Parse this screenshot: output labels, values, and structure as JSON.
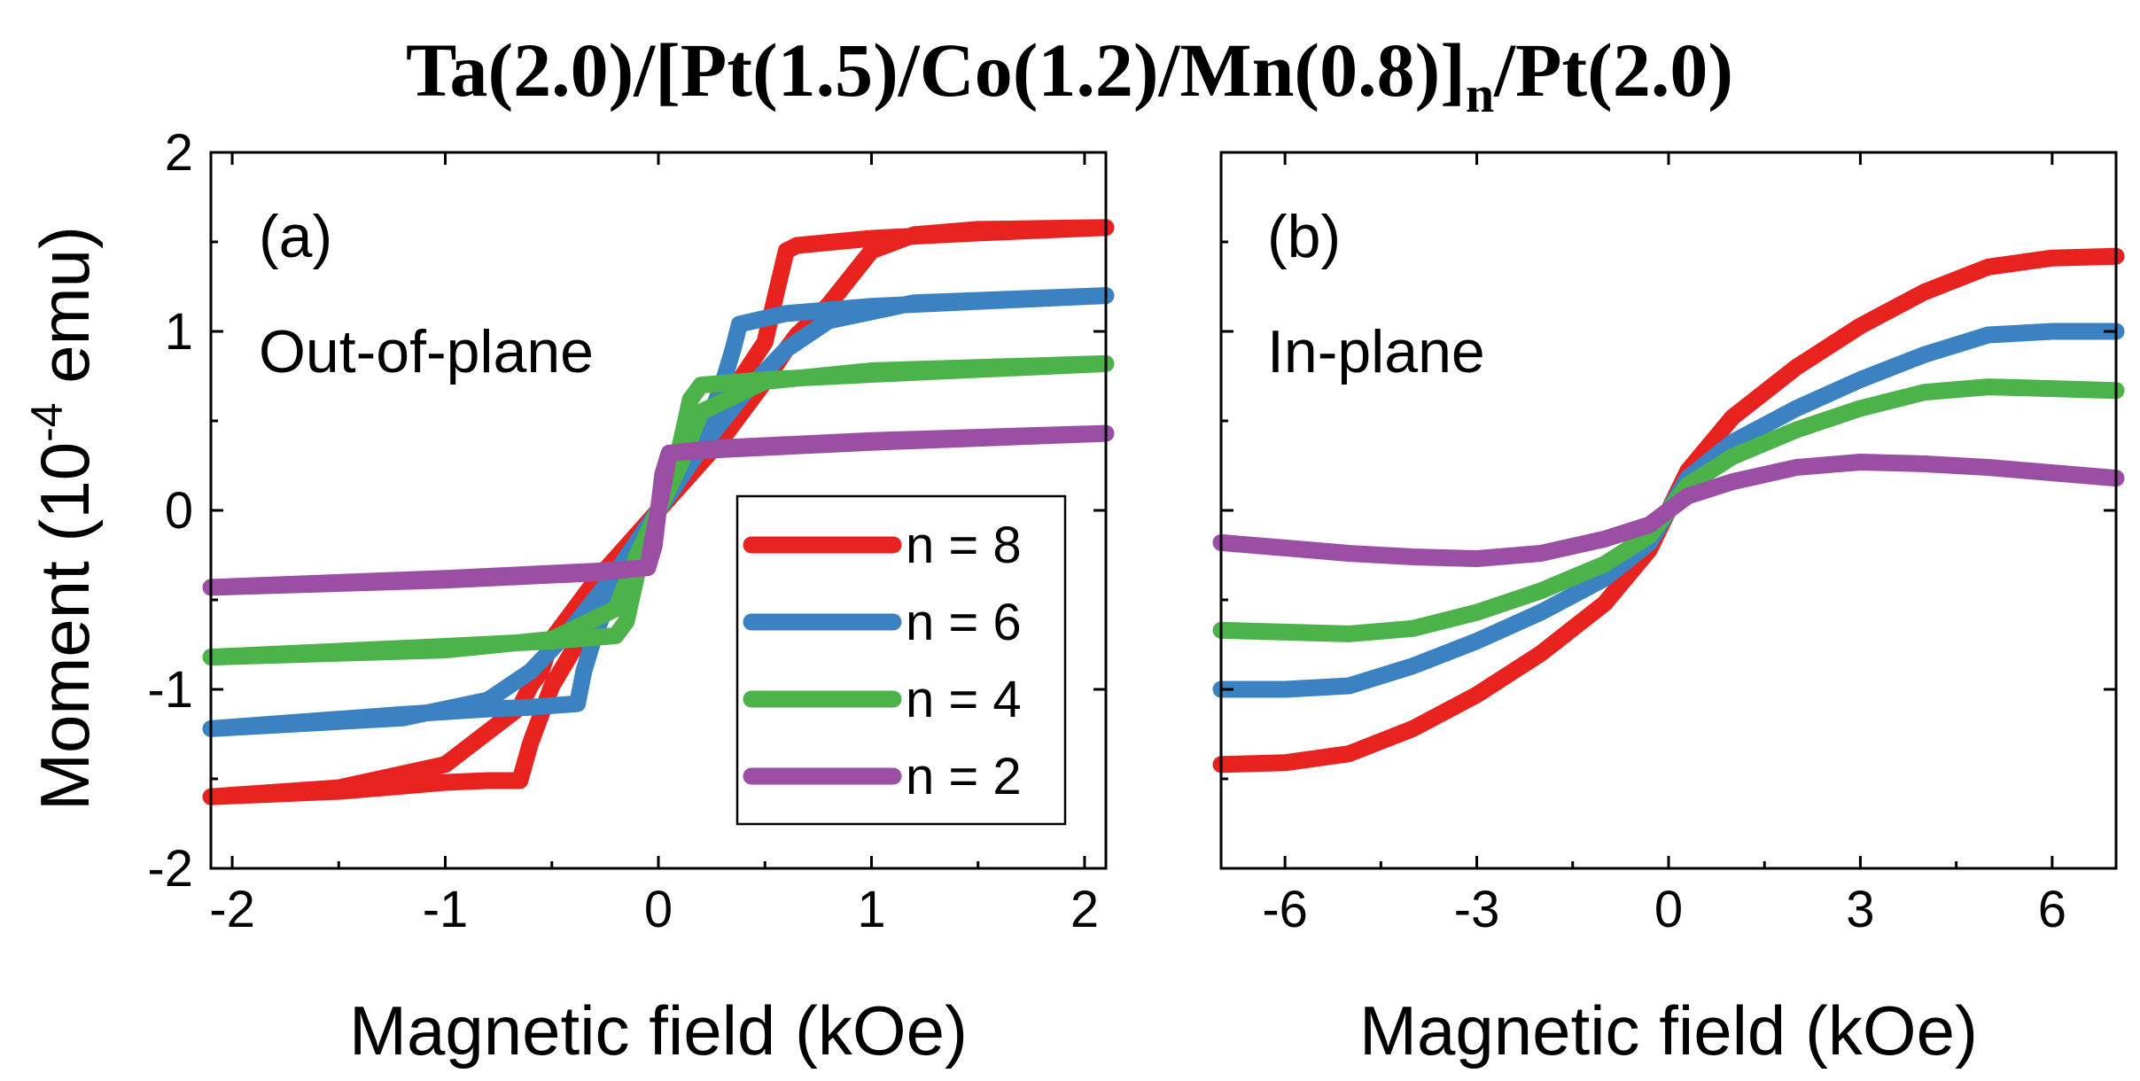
{
  "figure_title": {
    "main": "Ta(2.0)/[Pt(1.5)/Co(1.2)/Mn(0.8)]",
    "subscript": "n",
    "suffix": "/Pt(2.0)"
  },
  "y_axis_label": {
    "pre": "Moment (10",
    "sup": "-4",
    "post": " emu)"
  },
  "colors": {
    "n8": "#e8231f",
    "n6": "#3a82c2",
    "n4": "#4cb24a",
    "n2": "#9a4fa5"
  },
  "chart_data": [
    {
      "type": "line",
      "panel": "(a)",
      "subtitle": "Out-of-plane",
      "xlabel": "Magnetic field (kOe)",
      "ylabel": "Moment (10^-4 emu)",
      "xlim": [
        -2.1,
        2.1
      ],
      "ylim": [
        -2,
        2
      ],
      "xticks": [
        -2,
        -1,
        0,
        1,
        2
      ],
      "xtick_labels": [
        "-2",
        "-1",
        "0",
        "1",
        "2"
      ],
      "yticks": [
        -2,
        -1,
        0,
        1,
        2
      ],
      "ytick_labels": [
        "-2",
        "-1",
        "0",
        "1",
        "2"
      ],
      "legend": {
        "location": "lower-right",
        "entries": [
          "n = 8",
          "n = 6",
          "n = 4",
          "n = 2"
        ]
      },
      "series": [
        {
          "name": "n = 8",
          "x": [
            -2.1,
            -1.5,
            -1.2,
            -1.0,
            -0.8,
            -0.65,
            -0.6,
            -0.5,
            -0.3,
            0.0,
            0.3,
            0.5,
            0.55,
            0.6,
            0.65,
            1.0,
            1.5,
            2.1,
            1.5,
            1.2,
            1.0,
            0.8,
            0.65,
            0.6,
            0.5,
            0.3,
            0.0,
            -0.3,
            -0.5,
            -0.55,
            -0.6,
            -0.65,
            -1.0,
            -1.5,
            -2.1
          ],
          "y": [
            -1.6,
            -1.57,
            -1.54,
            -1.52,
            -1.51,
            -1.51,
            -1.3,
            -0.98,
            -0.58,
            0.0,
            0.58,
            0.94,
            1.2,
            1.45,
            1.48,
            1.52,
            1.55,
            1.58,
            1.57,
            1.54,
            1.45,
            1.15,
            0.98,
            0.9,
            0.72,
            0.4,
            0.0,
            -0.4,
            -0.72,
            -0.9,
            -0.98,
            -1.1,
            -1.42,
            -1.55,
            -1.6
          ]
        },
        {
          "name": "n = 6",
          "x": [
            -2.1,
            -1.2,
            -0.8,
            -0.6,
            -0.38,
            -0.35,
            -0.3,
            -0.2,
            0.0,
            0.2,
            0.3,
            0.35,
            0.38,
            0.6,
            1.0,
            2.1,
            1.2,
            0.8,
            0.6,
            0.4,
            0.2,
            0.0,
            -0.2,
            -0.4,
            -0.6,
            -0.8,
            -1.2,
            -2.1
          ],
          "y": [
            -1.22,
            -1.14,
            -1.11,
            -1.1,
            -1.08,
            -0.9,
            -0.7,
            -0.4,
            0.0,
            0.4,
            0.7,
            0.9,
            1.04,
            1.1,
            1.14,
            1.2,
            1.16,
            1.06,
            0.9,
            0.65,
            0.35,
            0.0,
            -0.35,
            -0.65,
            -0.9,
            -1.06,
            -1.16,
            -1.22
          ]
        },
        {
          "name": "n = 4",
          "x": [
            -2.1,
            -1.0,
            -0.5,
            -0.2,
            -0.15,
            -0.1,
            0.0,
            0.1,
            0.15,
            0.2,
            0.5,
            1.0,
            2.1,
            1.0,
            0.5,
            0.2,
            0.1,
            0.0,
            -0.1,
            -0.2,
            -0.5,
            -1.0,
            -2.1
          ],
          "y": [
            -0.82,
            -0.76,
            -0.73,
            -0.7,
            -0.62,
            -0.35,
            0.0,
            0.35,
            0.62,
            0.7,
            0.73,
            0.76,
            0.82,
            0.78,
            0.72,
            0.55,
            0.25,
            0.0,
            -0.25,
            -0.55,
            -0.72,
            -0.78,
            -0.82
          ]
        },
        {
          "name": "n = 2",
          "x": [
            -2.1,
            -1.0,
            -0.3,
            -0.05,
            -0.03,
            0.0,
            0.03,
            0.05,
            0.3,
            1.0,
            2.1,
            1.0,
            0.3,
            0.05,
            0.02,
            0.0,
            -0.02,
            -0.05,
            -0.3,
            -1.0,
            -2.1
          ],
          "y": [
            -0.43,
            -0.38,
            -0.34,
            -0.32,
            -0.18,
            0.0,
            0.18,
            0.32,
            0.34,
            0.38,
            0.43,
            0.39,
            0.35,
            0.32,
            0.2,
            0.0,
            -0.2,
            -0.32,
            -0.35,
            -0.39,
            -0.43
          ]
        }
      ]
    },
    {
      "type": "line",
      "panel": "(b)",
      "subtitle": "In-plane",
      "xlabel": "Magnetic field (kOe)",
      "ylabel": "",
      "xlim": [
        -7,
        7
      ],
      "ylim": [
        -2,
        2
      ],
      "xticks": [
        -6,
        -3,
        0,
        3,
        6
      ],
      "xtick_labels": [
        "-6",
        "-3",
        "0",
        "3",
        "6"
      ],
      "yticks": [
        -2,
        -1,
        0,
        1,
        2
      ],
      "ytick_labels": [],
      "series": [
        {
          "name": "n = 8",
          "x": [
            -7,
            -6,
            -5,
            -4,
            -3,
            -2,
            -1,
            -0.3,
            0,
            0.3,
            1,
            2,
            3,
            4,
            5,
            6,
            7
          ],
          "y": [
            -1.42,
            -1.41,
            -1.36,
            -1.22,
            -1.03,
            -0.8,
            -0.52,
            -0.22,
            0.0,
            0.22,
            0.52,
            0.8,
            1.03,
            1.22,
            1.36,
            1.41,
            1.42
          ]
        },
        {
          "name": "n = 6",
          "x": [
            -7,
            -6,
            -5,
            -4,
            -3,
            -2,
            -1,
            -0.3,
            0,
            0.3,
            1,
            2,
            3,
            4,
            5,
            6,
            7
          ],
          "y": [
            -1.0,
            -1.0,
            -0.98,
            -0.87,
            -0.73,
            -0.57,
            -0.38,
            -0.18,
            0.0,
            0.18,
            0.38,
            0.57,
            0.73,
            0.87,
            0.98,
            1.0,
            1.0
          ]
        },
        {
          "name": "n = 4",
          "x": [
            -7,
            -6,
            -5,
            -4,
            -3,
            -2,
            -1,
            -0.3,
            0,
            0.3,
            1,
            2,
            3,
            4,
            5,
            6,
            7
          ],
          "y": [
            -0.67,
            -0.68,
            -0.69,
            -0.66,
            -0.57,
            -0.45,
            -0.3,
            -0.14,
            0.0,
            0.14,
            0.3,
            0.45,
            0.57,
            0.66,
            0.69,
            0.68,
            0.67
          ]
        },
        {
          "name": "n = 2",
          "x": [
            -7,
            -6,
            -5,
            -4,
            -3,
            -2,
            -1,
            -0.3,
            0,
            0.3,
            1,
            2,
            3,
            4,
            5,
            6,
            7
          ],
          "y": [
            -0.18,
            -0.21,
            -0.24,
            -0.26,
            -0.27,
            -0.24,
            -0.16,
            -0.08,
            0.0,
            0.08,
            0.16,
            0.24,
            0.27,
            0.26,
            0.24,
            0.21,
            0.18
          ]
        }
      ]
    }
  ]
}
